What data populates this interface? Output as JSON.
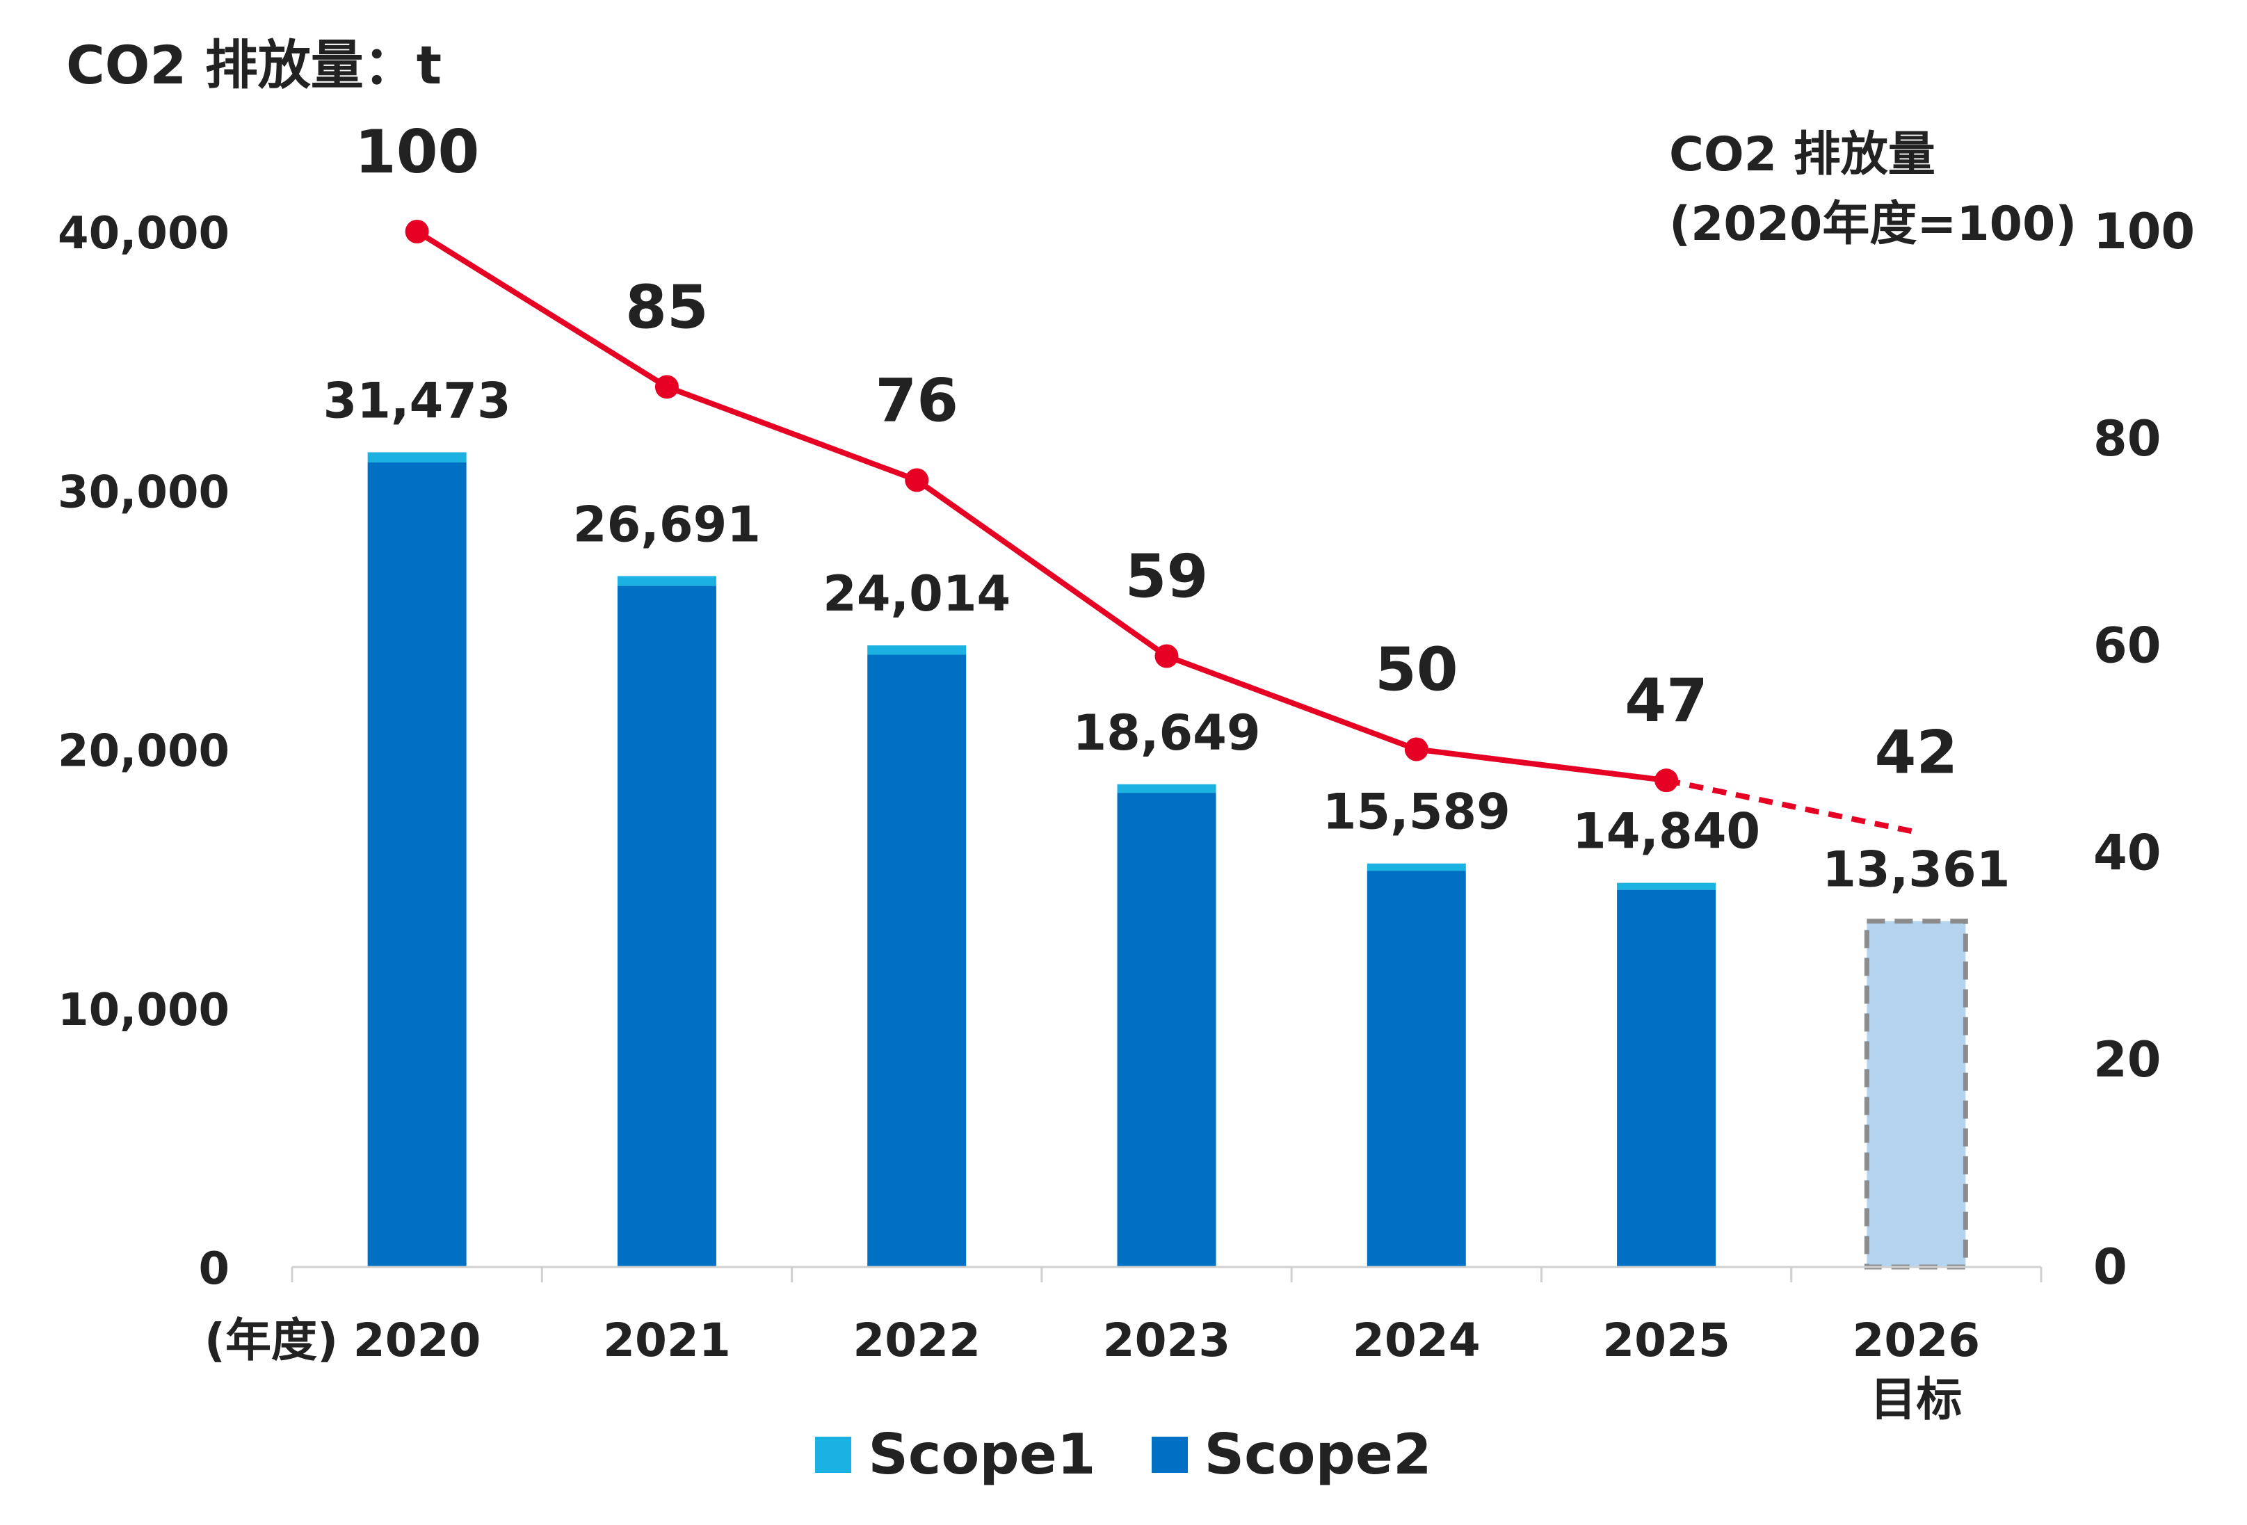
{
  "chart_data": {
    "type": "bar",
    "title": "CO2 排放量：t",
    "y2_title_line1": "CO2 排放量",
    "y2_title_line2": "(2020年度=100)",
    "x_axis_unit": "(年度)",
    "categories": [
      "2020",
      "2021",
      "2022",
      "2023",
      "2024",
      "2025",
      "2026"
    ],
    "category_sublabels": [
      "",
      "",
      "",
      "",
      "",
      "",
      "目标"
    ],
    "ylim": [
      0,
      40000
    ],
    "yticks": [
      "0",
      "10,000",
      "20,000",
      "30,000",
      "40,000"
    ],
    "y2lim": [
      0,
      100
    ],
    "y2ticks": [
      "0",
      "20",
      "40",
      "60",
      "80",
      "100"
    ],
    "totals": [
      31473,
      26691,
      24014,
      18649,
      15589,
      14840,
      13361
    ],
    "total_labels": [
      "31,473",
      "26,691",
      "24,014",
      "18,649",
      "15,589",
      "14,840",
      "13,361"
    ],
    "series": [
      {
        "name": "Scope1",
        "color": "#1BB1E0",
        "values": [
          390,
          380,
          360,
          330,
          280,
          270,
          null
        ]
      },
      {
        "name": "Scope2",
        "color": "#0070C5",
        "values": [
          31083,
          26311,
          23654,
          18319,
          15309,
          14570,
          null
        ]
      },
      {
        "color": "#B3D3EE",
        "values": [
          null,
          null,
          null,
          null,
          null,
          null,
          13361
        ],
        "dashed": true
      }
    ],
    "index_line": {
      "color": "#E60023",
      "values": [
        100,
        85,
        76,
        59,
        50,
        47,
        42
      ],
      "labels": [
        "100",
        "85",
        "76",
        "59",
        "50",
        "47",
        "42"
      ]
    },
    "legend": [
      "Scope1",
      "Scope2"
    ],
    "legend_placement": "bottom",
    "grid": false
  }
}
